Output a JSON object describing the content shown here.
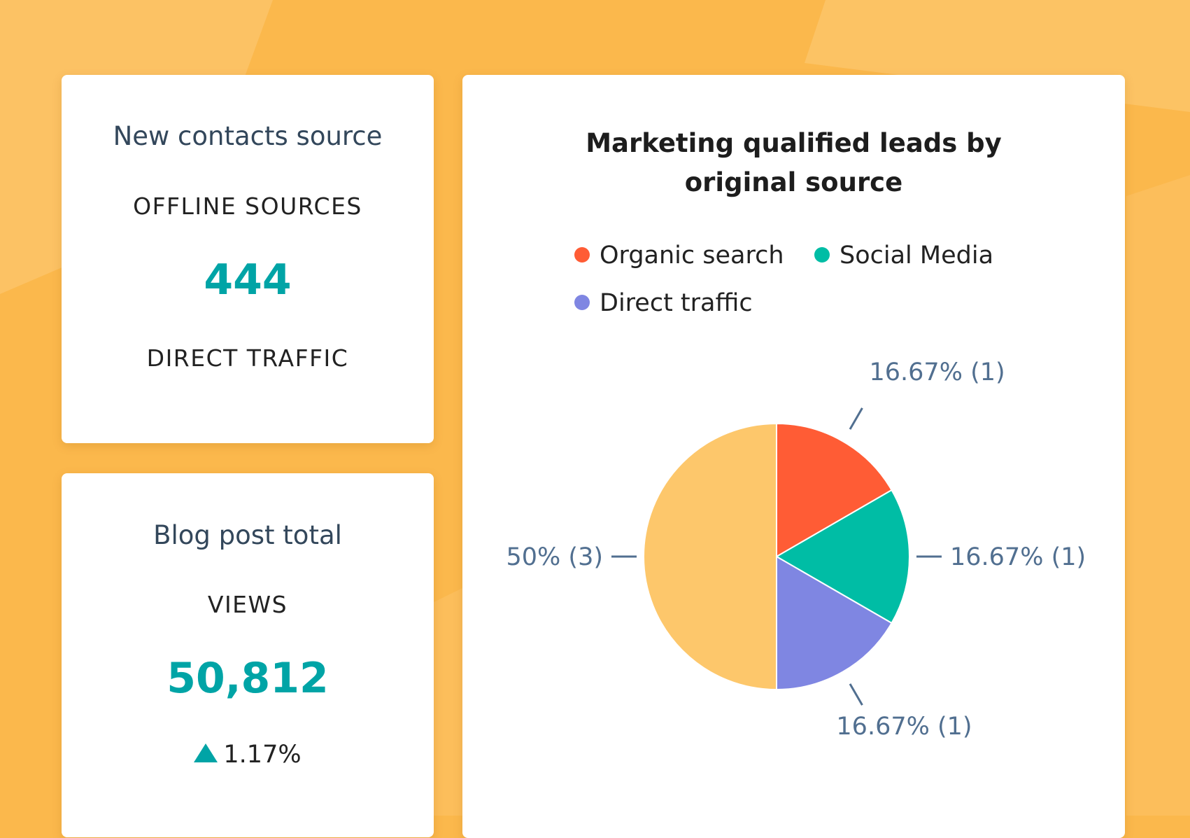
{
  "colors": {
    "background": "#fbb84c",
    "accent_teal": "#00a4a6"
  },
  "contacts_card": {
    "title": "New contacts source",
    "label_top": "OFFLINE SOURCES",
    "value": "444",
    "label_bottom": "DIRECT TRAFFIC"
  },
  "blog_card": {
    "title": "Blog post total",
    "label": "VIEWS",
    "value": "50,812",
    "change_icon": "triangle-up-icon",
    "change": "1.17%"
  },
  "chart_data": {
    "type": "pie",
    "title": "Marketing qualified leads by original source",
    "title_lines": [
      "Marketing qualified leads by",
      "original source"
    ],
    "legend_position": "top",
    "legend": [
      {
        "name": "Organic search",
        "color": "#ff5c35"
      },
      {
        "name": "Social Media",
        "color": "#00bda5"
      },
      {
        "name": "Direct traffic",
        "color": "#7f86e2"
      }
    ],
    "slices": [
      {
        "name": "Organic search",
        "value": 1,
        "percent": 16.67,
        "color": "#ff5c35",
        "label": "16.67% (1)"
      },
      {
        "name": "Social Media",
        "value": 1,
        "percent": 16.67,
        "color": "#00bda5",
        "label": "16.67% (1)"
      },
      {
        "name": "Direct traffic",
        "value": 1,
        "percent": 16.67,
        "color": "#7f86e2",
        "label": "16.67% (1)"
      },
      {
        "name": "",
        "value": 3,
        "percent": 50,
        "color": "#fdc76b",
        "label": "50% (3)"
      }
    ]
  }
}
